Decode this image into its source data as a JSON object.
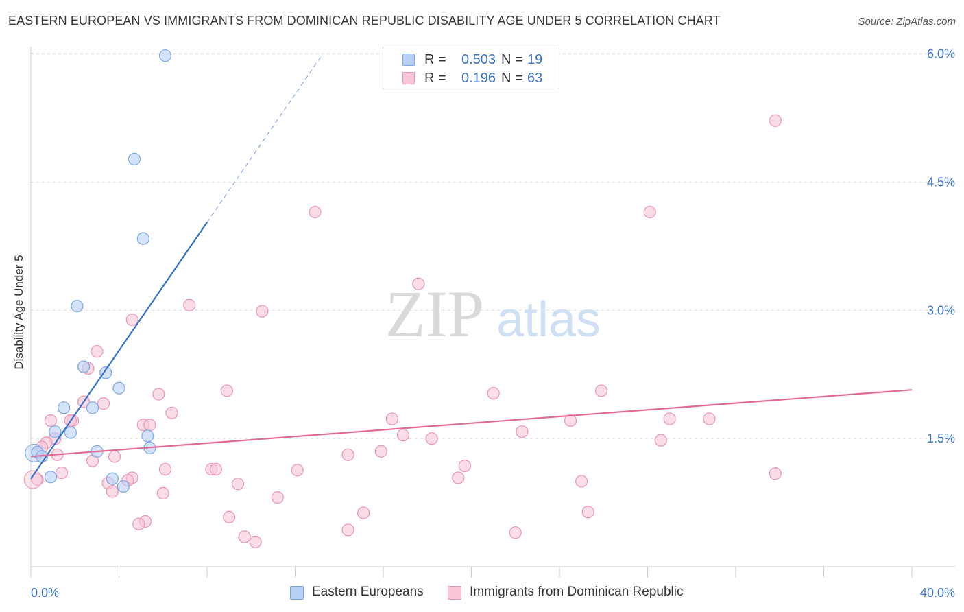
{
  "header": {
    "title": "EASTERN EUROPEAN VS IMMIGRANTS FROM DOMINICAN REPUBLIC DISABILITY AGE UNDER 5 CORRELATION CHART",
    "source": "Source: ZipAtlas.com"
  },
  "legend": {
    "r_label": "R =",
    "n_label": "N =",
    "series": [
      {
        "name": "Eastern Europeans",
        "r": "0.503",
        "n": "19"
      },
      {
        "name": "Immigrants from Dominican Republic",
        "r": "0.196",
        "n": "63"
      }
    ]
  },
  "watermark": {
    "zip": "ZIP",
    "atlas": "atlas"
  },
  "colors": {
    "blue_fill": "#b8d0f5",
    "blue_stroke": "#7aa6e6",
    "blue_line": "#3370cc",
    "pink_fill": "#f9c7d7",
    "pink_stroke": "#eb93b2",
    "pink_line": "#e06a95",
    "tick_text": "#3b73c8",
    "grid": "#dcdcdc"
  },
  "chart_data": {
    "type": "scatter",
    "title": "EASTERN EUROPEAN VS IMMIGRANTS FROM DOMINICAN REPUBLIC DISABILITY AGE UNDER 5 CORRELATION CHART",
    "xlabel": "",
    "ylabel": "Disability Age Under 5",
    "xlim": [
      0,
      40
    ],
    "ylim": [
      0,
      6.15
    ],
    "x_tick_labels": [
      "0.0%",
      "40.0%"
    ],
    "y_ticks": [
      {
        "value": 1.5,
        "label": "1.5%"
      },
      {
        "value": 3.0,
        "label": "3.0%"
      },
      {
        "value": 4.5,
        "label": "4.5%"
      },
      {
        "value": 6.0,
        "label": "6.0%"
      }
    ],
    "series": [
      {
        "name": "Eastern Europeans",
        "color": "blue",
        "x": [
          6.1,
          4.7,
          5.1,
          2.1,
          2.4,
          3.4,
          4.0,
          1.5,
          2.8,
          1.1,
          1.8,
          5.3,
          5.4,
          3.0,
          0.3,
          0.5,
          0.9,
          3.7,
          4.2
        ],
        "y": [
          5.98,
          4.77,
          3.84,
          3.05,
          2.34,
          2.27,
          2.09,
          1.86,
          1.86,
          1.58,
          1.57,
          1.53,
          1.39,
          1.35,
          1.34,
          1.29,
          1.05,
          1.03,
          0.94
        ],
        "trend": {
          "x0": 0.0,
          "y0": 1.03,
          "x1": 8.0,
          "y1": 4.03,
          "dash_x1": 13.2,
          "dash_y1": 5.98
        }
      },
      {
        "name": "Immigrants from Dominican Republic",
        "color": "pink",
        "x": [
          33.8,
          12.9,
          28.1,
          17.6,
          7.2,
          10.5,
          4.6,
          3.0,
          2.6,
          8.9,
          25.9,
          21.0,
          5.8,
          2.4,
          3.3,
          1.9,
          16.4,
          1.8,
          0.9,
          5.1,
          5.4,
          6.4,
          24.5,
          29.0,
          30.8,
          22.3,
          16.9,
          1.1,
          0.7,
          28.6,
          18.2,
          14.4,
          1.2,
          3.8,
          2.8,
          0.5,
          4.6,
          12.1,
          8.2,
          8.4,
          6.1,
          15.9,
          1.4,
          19.7,
          33.8,
          19.4,
          4.4,
          3.5,
          0.3,
          25.0,
          9.4,
          3.7,
          6.0,
          11.2,
          5.2,
          25.3,
          9.0,
          15.1,
          4.9,
          22.0,
          9.7,
          10.2,
          14.4
        ],
        "y": [
          5.22,
          4.15,
          4.15,
          3.31,
          3.06,
          2.99,
          2.89,
          2.52,
          2.32,
          2.06,
          2.06,
          2.03,
          2.02,
          1.93,
          1.91,
          1.71,
          1.73,
          1.71,
          1.71,
          1.66,
          1.66,
          1.8,
          1.71,
          1.73,
          1.73,
          1.58,
          1.54,
          1.5,
          1.45,
          1.48,
          1.5,
          1.31,
          1.31,
          1.29,
          1.24,
          1.4,
          1.04,
          1.13,
          1.14,
          1.14,
          1.14,
          1.35,
          1.1,
          1.18,
          1.09,
          1.04,
          1.01,
          0.98,
          1.02,
          1.0,
          0.97,
          0.88,
          0.86,
          0.81,
          0.53,
          0.64,
          0.58,
          0.63,
          0.5,
          0.4,
          0.35,
          0.29,
          0.43
        ],
        "trend": {
          "x0": 0.0,
          "y0": 1.29,
          "x1": 40.0,
          "y1": 2.07
        }
      }
    ]
  },
  "axis": {
    "x_min_label": "0.0%",
    "x_max_label": "40.0%",
    "y_title": "Disability Age Under 5"
  }
}
